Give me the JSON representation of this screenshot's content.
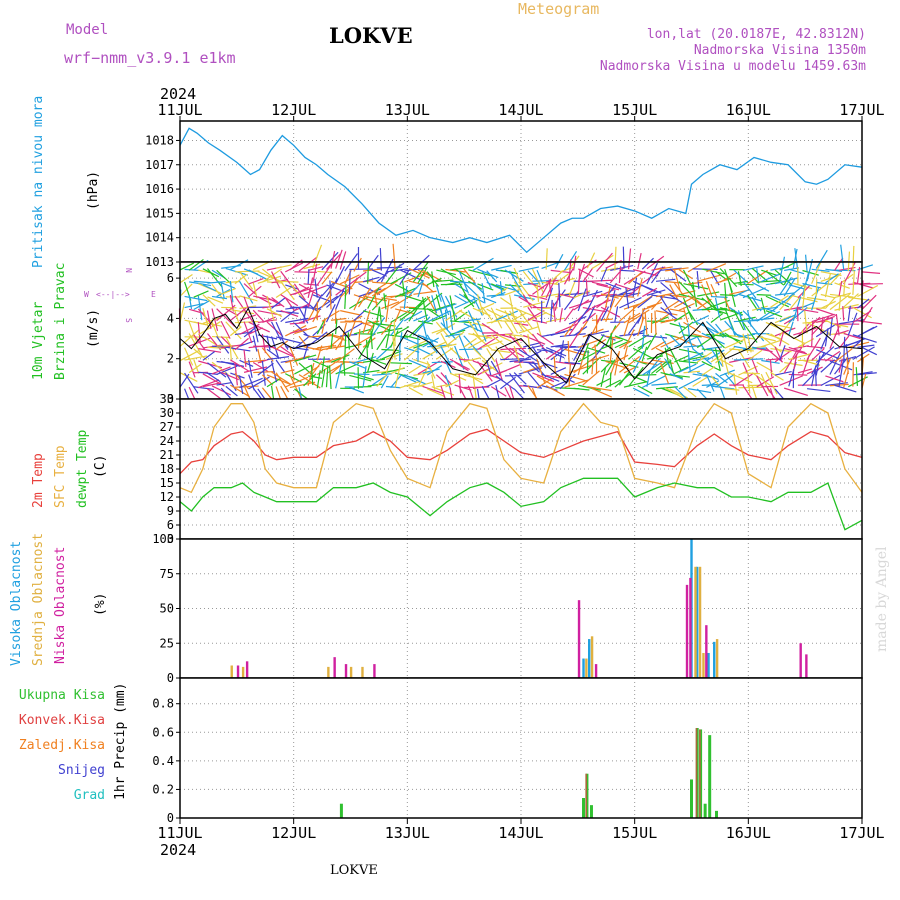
{
  "header": {
    "model_label": "Model",
    "model_name": "wrf−nmm_v3.9.1  e1km",
    "station": "LOKVE",
    "product": "Meteogram",
    "lonlat": "lon,lat (20.0187E, 42.8312N)",
    "altitude": "Nadmorska Visina 1350m",
    "model_altitude": "Nadmorska Visina u modelu 1459.63m",
    "footer_station": "LOKVE",
    "watermark": "made by Angel"
  },
  "colors": {
    "pressure": "#1e9be0",
    "temp2m": "#e8413c",
    "sfc_temp": "#e8b040",
    "dewpoint": "#22c022",
    "high_cloud": "#20a0e0",
    "mid_cloud": "#e0b040",
    "low_cloud": "#d020a0",
    "total_precip": "#30c030",
    "conv_precip": "#e04040",
    "frozen_precip": "#f08020",
    "snow": "#4040d0",
    "hail": "#20c0c0",
    "model_text": "#b050c0",
    "meteogram_text": "#e8b860"
  },
  "axes": {
    "year": "2024",
    "dates": [
      "11JUL",
      "12JUL",
      "13JUL",
      "14JUL",
      "15JUL",
      "16JUL",
      "17JUL"
    ]
  },
  "panels": {
    "pressure": {
      "ylabel": "Pritisak na nivou mora",
      "unit": "(hPa)"
    },
    "wind": {
      "ylabel1": "10m Vjetar",
      "ylabel2": "Brzina i Pravac",
      "unit": "(m/s)",
      "compass_w": "W",
      "compass_e": "E",
      "compass_n": "N",
      "compass_s": "S"
    },
    "temp": {
      "label1": "2m Temp",
      "label2": "SFC Temp",
      "label3": "dewpt Temp",
      "unit": "(C)"
    },
    "cloud": {
      "label1": "Visoka Oblacnost",
      "label2": "Srednja Oblacnost",
      "label3": "Niska Oblacnost",
      "unit": "(%)"
    },
    "precip": {
      "label1": "Ukupna Kisa",
      "label2": "Konvek.Kisa",
      "label3": "Zaledj.Kisa",
      "label4": "Snijeg",
      "label5": "Grad",
      "unit": "1hr Precip (mm)"
    }
  },
  "chart_data": [
    {
      "type": "line",
      "panel": "pressure",
      "ylim": [
        1013,
        1018.8
      ],
      "yticks": [
        1013,
        1014,
        1015,
        1016,
        1017,
        1018
      ],
      "xlim_days": [
        0,
        6
      ],
      "series": [
        {
          "name": "Pritisak na nivou mora",
          "x": [
            0,
            0.08,
            0.15,
            0.25,
            0.35,
            0.5,
            0.62,
            0.7,
            0.8,
            0.9,
            1.0,
            1.1,
            1.2,
            1.3,
            1.45,
            1.6,
            1.75,
            1.9,
            2.05,
            2.2,
            2.4,
            2.55,
            2.7,
            2.9,
            3.05,
            3.2,
            3.35,
            3.45,
            3.55,
            3.7,
            3.85,
            4.0,
            4.15,
            4.3,
            4.45,
            4.5,
            4.6,
            4.75,
            4.9,
            5.05,
            5.2,
            5.35,
            5.5,
            5.6,
            5.7,
            5.85,
            6.0
          ],
          "values": [
            1017.8,
            1018.5,
            1018.3,
            1017.9,
            1017.6,
            1017.1,
            1016.6,
            1016.8,
            1017.6,
            1018.2,
            1017.8,
            1017.3,
            1017.0,
            1016.6,
            1016.1,
            1015.4,
            1014.6,
            1014.1,
            1014.3,
            1014.0,
            1013.8,
            1014.0,
            1013.8,
            1014.1,
            1013.4,
            1014.0,
            1014.6,
            1014.8,
            1014.8,
            1015.2,
            1015.3,
            1015.1,
            1014.8,
            1015.2,
            1015.0,
            1016.2,
            1016.6,
            1017.0,
            1016.8,
            1017.3,
            1017.1,
            1017.0,
            1016.3,
            1016.2,
            1016.4,
            1017.0,
            1016.9
          ]
        }
      ]
    },
    {
      "type": "line",
      "panel": "wind",
      "ylim": [
        0,
        6.8
      ],
      "yticks": [
        0,
        2,
        4,
        6
      ],
      "series": [
        {
          "name": "10m Vjetar",
          "x": [
            0,
            0.1,
            0.2,
            0.3,
            0.4,
            0.5,
            0.6,
            0.7,
            0.8,
            0.9,
            1.0,
            1.2,
            1.4,
            1.6,
            1.8,
            2.0,
            2.2,
            2.4,
            2.6,
            2.8,
            3.0,
            3.2,
            3.4,
            3.6,
            3.8,
            4.0,
            4.2,
            4.4,
            4.6,
            4.8,
            5.0,
            5.2,
            5.4,
            5.6,
            5.8,
            6.0
          ],
          "values": [
            3.0,
            2.5,
            3.2,
            4.0,
            4.2,
            3.5,
            4.5,
            3.2,
            2.6,
            2.8,
            2.5,
            2.8,
            3.6,
            2.2,
            1.5,
            3.4,
            2.8,
            1.5,
            1.2,
            2.5,
            3.0,
            1.8,
            0.8,
            3.2,
            2.5,
            1.0,
            2.2,
            2.6,
            3.8,
            2.0,
            2.5,
            3.8,
            3.0,
            3.6,
            2.6,
            2.5
          ]
        }
      ]
    },
    {
      "type": "line",
      "panel": "temperature",
      "ylim": [
        3,
        33
      ],
      "yticks": [
        3,
        6,
        9,
        12,
        15,
        18,
        21,
        24,
        27,
        30,
        33
      ],
      "series": [
        {
          "name": "2m Temp",
          "x": [
            0,
            0.1,
            0.2,
            0.3,
            0.45,
            0.55,
            0.65,
            0.75,
            0.85,
            1.0,
            1.2,
            1.35,
            1.55,
            1.7,
            1.85,
            2.0,
            2.2,
            2.35,
            2.55,
            2.7,
            2.85,
            3.0,
            3.2,
            3.35,
            3.55,
            3.7,
            3.85,
            4.0,
            4.2,
            4.35,
            4.55,
            4.7,
            4.85,
            5.0,
            5.2,
            5.35,
            5.55,
            5.7,
            5.85,
            6.0
          ],
          "values": [
            17,
            19.5,
            20,
            23,
            25.5,
            26,
            24,
            21,
            20,
            20.5,
            20.5,
            23,
            24,
            26,
            24,
            20.5,
            20,
            22,
            25.5,
            26.5,
            24,
            21.5,
            20.5,
            22,
            24,
            25,
            26,
            19.5,
            19,
            18.5,
            23,
            25.5,
            23,
            21,
            20,
            23,
            26,
            25,
            21.5,
            20.5
          ]
        },
        {
          "name": "SFC Temp",
          "x": [
            0,
            0.1,
            0.2,
            0.3,
            0.45,
            0.55,
            0.65,
            0.75,
            0.85,
            1.0,
            1.2,
            1.35,
            1.55,
            1.7,
            1.85,
            2.0,
            2.2,
            2.35,
            2.55,
            2.7,
            2.85,
            3.0,
            3.2,
            3.35,
            3.55,
            3.7,
            3.85,
            4.0,
            4.2,
            4.35,
            4.55,
            4.7,
            4.85,
            5.0,
            5.2,
            5.35,
            5.55,
            5.7,
            5.85,
            6.0
          ],
          "values": [
            14,
            13,
            18,
            27,
            32,
            32,
            28,
            18,
            15,
            14,
            14,
            28,
            32,
            31,
            22,
            16,
            14,
            26,
            32,
            31,
            20,
            16,
            15,
            26,
            32,
            28,
            27,
            16,
            15,
            14,
            27,
            32,
            30,
            17,
            14,
            27,
            32,
            30,
            18,
            13
          ]
        },
        {
          "name": "dewpt Temp",
          "x": [
            0,
            0.1,
            0.2,
            0.3,
            0.45,
            0.55,
            0.65,
            0.75,
            0.85,
            1.0,
            1.2,
            1.35,
            1.55,
            1.7,
            1.85,
            2.0,
            2.2,
            2.35,
            2.55,
            2.7,
            2.85,
            3.0,
            3.2,
            3.35,
            3.55,
            3.7,
            3.85,
            4.0,
            4.2,
            4.35,
            4.55,
            4.7,
            4.85,
            5.0,
            5.2,
            5.35,
            5.55,
            5.7,
            5.85,
            6.0
          ],
          "values": [
            11,
            9,
            12,
            14,
            14,
            15,
            13,
            12,
            11,
            11,
            11,
            14,
            14,
            15,
            13,
            12,
            8,
            11,
            14,
            15,
            13,
            10,
            11,
            14,
            16,
            16,
            16,
            12,
            14,
            15,
            14,
            14,
            12,
            12,
            11,
            13,
            13,
            15,
            5,
            7
          ]
        }
      ]
    },
    {
      "type": "bar",
      "panel": "cloud",
      "ylim": [
        0,
        100
      ],
      "yticks": [
        0,
        25,
        50,
        75,
        100
      ],
      "series": [
        {
          "name": "Visoka Oblacnost",
          "x": [
            3.55,
            3.6,
            4.5,
            4.55,
            4.65,
            4.7
          ],
          "values": [
            14,
            28,
            100,
            80,
            18,
            26
          ]
        },
        {
          "name": "Srednja Oblacnost",
          "x": [
            0.45,
            0.55,
            1.3,
            1.5,
            1.6,
            3.57,
            3.62,
            4.53,
            4.57,
            4.6,
            4.72
          ],
          "values": [
            9,
            8,
            8,
            8,
            8,
            14,
            30,
            80,
            80,
            18,
            28
          ]
        },
        {
          "name": "Niska Oblacnost",
          "x": [
            0.5,
            0.58,
            1.35,
            1.45,
            1.7,
            3.5,
            3.65,
            4.45,
            4.48,
            4.62,
            5.45,
            5.5
          ],
          "values": [
            9,
            12,
            15,
            10,
            10,
            56,
            10,
            67,
            72,
            38,
            25,
            17
          ]
        }
      ]
    },
    {
      "type": "bar",
      "panel": "precip",
      "ylim": [
        0,
        0.98
      ],
      "yticks": [
        0,
        0.2,
        0.4,
        0.6,
        0.8
      ],
      "series": [
        {
          "name": "Ukupna Kisa",
          "x": [
            1.42,
            3.55,
            3.58,
            3.62,
            4.5,
            4.55,
            4.58,
            4.62,
            4.66,
            4.72
          ],
          "values": [
            0.1,
            0.14,
            0.31,
            0.09,
            0.27,
            0.63,
            0.62,
            0.1,
            0.58,
            0.05
          ]
        },
        {
          "name": "Konvek.Kisa",
          "x": [
            3.58,
            4.55,
            4.58
          ],
          "values": [
            0.31,
            0.63,
            0.62
          ]
        }
      ]
    }
  ]
}
